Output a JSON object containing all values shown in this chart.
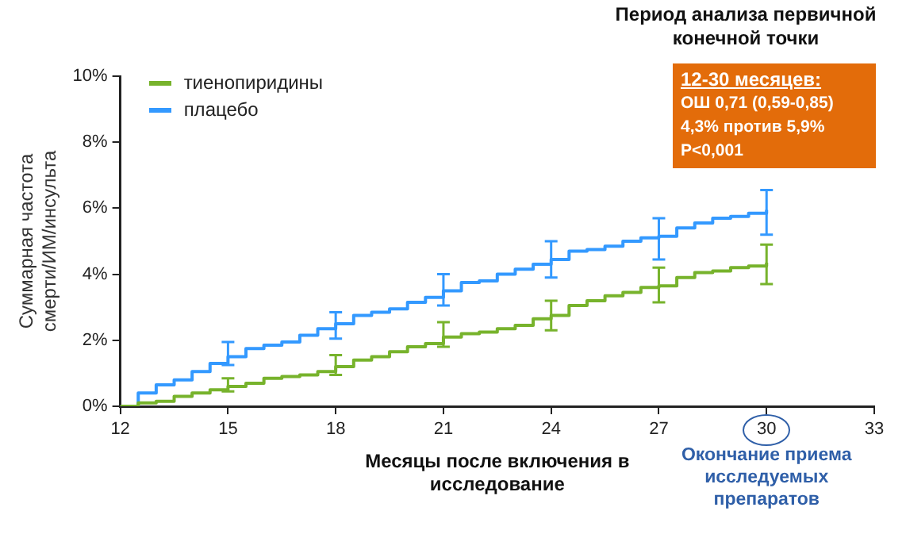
{
  "chart_data": {
    "type": "step",
    "xlabel": "Месяцы после включения в\nисследование",
    "ylabel": "Суммарная частота\nсмерти/ИМ/инсульта",
    "annotations": [
      "Период анализа первичной\nконечной точки",
      "12-30 месяцев:\nОШ 0,71 (0,59-0,85)\n4,3% против 5,9%\nP<0,001",
      "Окончание приема\nисследуемых\nпрепаратов"
    ],
    "x": [
      12,
      12.5,
      13,
      13.5,
      14,
      14.5,
      15,
      15.5,
      16,
      16.5,
      17,
      17.5,
      18,
      18.5,
      19,
      19.5,
      20,
      20.5,
      21,
      21.5,
      22,
      22.5,
      23,
      23.5,
      24,
      24.5,
      25,
      25.5,
      26,
      26.5,
      27,
      27.5,
      28,
      28.5,
      29,
      29.5,
      30
    ],
    "series": [
      {
        "name": "тиенопиридины",
        "color": "#77b32c",
        "values": [
          0,
          0.1,
          0.15,
          0.3,
          0.4,
          0.5,
          0.6,
          0.7,
          0.85,
          0.9,
          0.95,
          1.05,
          1.2,
          1.4,
          1.5,
          1.65,
          1.8,
          1.9,
          2.1,
          2.2,
          2.25,
          2.35,
          2.45,
          2.65,
          2.75,
          3.05,
          3.2,
          3.35,
          3.45,
          3.6,
          3.65,
          3.9,
          4.05,
          4.1,
          4.2,
          4.25,
          4.35
        ],
        "errors": [
          null,
          null,
          null,
          null,
          null,
          null,
          [
            0.45,
            0.85
          ],
          null,
          null,
          null,
          null,
          null,
          [
            0.95,
            1.55
          ],
          null,
          null,
          null,
          null,
          null,
          [
            1.8,
            2.55
          ],
          null,
          null,
          null,
          null,
          null,
          [
            2.3,
            3.2
          ],
          null,
          null,
          null,
          null,
          null,
          [
            3.15,
            4.2
          ],
          null,
          null,
          null,
          null,
          null,
          [
            3.7,
            4.9
          ]
        ]
      },
      {
        "name": "плацебо",
        "color": "#3399ff",
        "values": [
          0,
          0.4,
          0.65,
          0.8,
          1.05,
          1.3,
          1.5,
          1.75,
          1.85,
          1.95,
          2.15,
          2.35,
          2.5,
          2.75,
          2.85,
          2.95,
          3.15,
          3.3,
          3.5,
          3.75,
          3.8,
          4.0,
          4.15,
          4.3,
          4.45,
          4.7,
          4.75,
          4.85,
          5.0,
          5.1,
          5.15,
          5.4,
          5.55,
          5.7,
          5.75,
          5.85,
          5.95
        ],
        "errors": [
          null,
          null,
          null,
          null,
          null,
          null,
          [
            1.25,
            1.95
          ],
          null,
          null,
          null,
          null,
          null,
          [
            2.05,
            2.85
          ],
          null,
          null,
          null,
          null,
          null,
          [
            3.05,
            4.0
          ],
          null,
          null,
          null,
          null,
          null,
          [
            3.9,
            5.0
          ],
          null,
          null,
          null,
          null,
          null,
          [
            4.45,
            5.7
          ],
          null,
          null,
          null,
          null,
          null,
          [
            5.2,
            6.55
          ]
        ]
      }
    ],
    "xlim": [
      12,
      33
    ],
    "xticks": [
      12,
      15,
      18,
      21,
      24,
      27,
      30,
      33
    ],
    "ylim": [
      0,
      10
    ],
    "yticks": [
      {
        "value": 0,
        "label": "0%"
      },
      {
        "value": 2,
        "label": "2%"
      },
      {
        "value": 4,
        "label": "4%"
      },
      {
        "value": 6,
        "label": "6%"
      },
      {
        "value": 8,
        "label": "8%"
      },
      {
        "value": 10,
        "label": "10%"
      }
    ],
    "grid": false,
    "legend": "top left",
    "marker": "none",
    "line_style": "solid"
  }
}
